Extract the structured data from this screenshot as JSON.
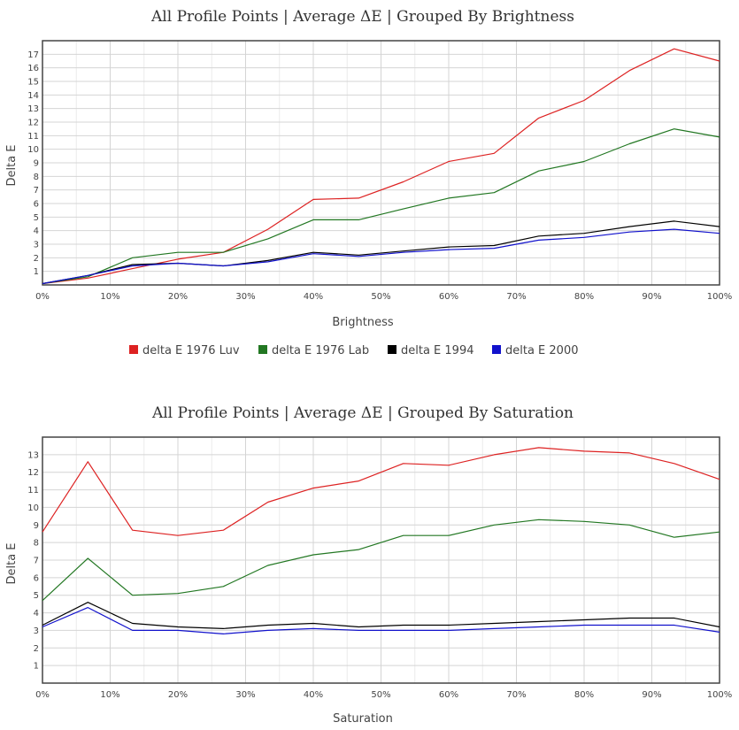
{
  "series_info": [
    {
      "name": "delta E 1976 Luv",
      "color": "#dd2222"
    },
    {
      "name": "delta E 1976 Lab",
      "color": "#227722"
    },
    {
      "name": "delta E 1994",
      "color": "#000000"
    },
    {
      "name": "delta E 2000",
      "color": "#1111cc"
    }
  ],
  "chart_data": [
    {
      "type": "line",
      "title": "All Profile Points | Average ΔE | Grouped By Brightness",
      "xlabel": "Brightness",
      "ylabel": "Delta E",
      "xlim": [
        0,
        100
      ],
      "ylim": [
        0,
        18
      ],
      "xticks": [
        "0%",
        "10%",
        "20%",
        "30%",
        "40%",
        "50%",
        "60%",
        "70%",
        "80%",
        "90%",
        "100%"
      ],
      "yticks": [
        1,
        2,
        3,
        4,
        5,
        6,
        7,
        8,
        9,
        10,
        11,
        12,
        13,
        14,
        15,
        16,
        17
      ],
      "grid": true,
      "legend": "bottom",
      "x": [
        0,
        6.7,
        13.3,
        20,
        26.7,
        33.3,
        40,
        46.7,
        53.3,
        60,
        66.7,
        73.3,
        80,
        86.7,
        93.3,
        100
      ],
      "series": [
        {
          "name": "delta E 1976 Luv",
          "values": [
            0.1,
            0.5,
            1.2,
            1.9,
            2.4,
            4.1,
            6.3,
            6.4,
            7.6,
            9.1,
            9.7,
            12.3,
            13.6,
            15.8,
            17.4,
            16.5
          ]
        },
        {
          "name": "delta E 1976 Lab",
          "values": [
            0.1,
            0.6,
            2.0,
            2.4,
            2.4,
            3.4,
            4.8,
            4.8,
            5.6,
            6.4,
            6.8,
            8.4,
            9.1,
            10.4,
            11.5,
            10.9
          ]
        },
        {
          "name": "delta E 1994",
          "values": [
            0.1,
            0.7,
            1.5,
            1.6,
            1.4,
            1.8,
            2.4,
            2.2,
            2.5,
            2.8,
            2.9,
            3.6,
            3.8,
            4.3,
            4.7,
            4.3
          ]
        },
        {
          "name": "delta E 2000",
          "values": [
            0.1,
            0.7,
            1.4,
            1.6,
            1.4,
            1.7,
            2.3,
            2.1,
            2.4,
            2.6,
            2.7,
            3.3,
            3.5,
            3.9,
            4.1,
            3.8
          ]
        }
      ]
    },
    {
      "type": "line",
      "title": "All Profile Points | Average ΔE | Grouped By Saturation",
      "xlabel": "Saturation",
      "ylabel": "Delta E",
      "xlim": [
        0,
        100
      ],
      "ylim": [
        0,
        14
      ],
      "xticks": [
        "0%",
        "10%",
        "20%",
        "30%",
        "40%",
        "50%",
        "60%",
        "70%",
        "80%",
        "90%",
        "100%"
      ],
      "yticks": [
        1,
        2,
        3,
        4,
        5,
        6,
        7,
        8,
        9,
        10,
        11,
        12,
        13
      ],
      "grid": true,
      "legend": "none",
      "x": [
        0,
        6.7,
        13.3,
        20,
        26.7,
        33.3,
        40,
        46.7,
        53.3,
        60,
        66.7,
        73.3,
        80,
        86.7,
        93.3,
        100
      ],
      "series": [
        {
          "name": "delta E 1976 Luv",
          "values": [
            8.6,
            12.6,
            8.7,
            8.4,
            8.7,
            10.3,
            11.1,
            11.5,
            12.5,
            12.4,
            13.0,
            13.4,
            13.2,
            13.1,
            12.5,
            11.6
          ]
        },
        {
          "name": "delta E 1976 Lab",
          "values": [
            4.7,
            7.1,
            5.0,
            5.1,
            5.5,
            6.7,
            7.3,
            7.6,
            8.4,
            8.4,
            9.0,
            9.3,
            9.2,
            9.0,
            8.3,
            8.6
          ]
        },
        {
          "name": "delta E 1994",
          "values": [
            3.3,
            4.6,
            3.4,
            3.2,
            3.1,
            3.3,
            3.4,
            3.2,
            3.3,
            3.3,
            3.4,
            3.5,
            3.6,
            3.7,
            3.7,
            3.2
          ]
        },
        {
          "name": "delta E 2000",
          "values": [
            3.2,
            4.3,
            3.0,
            3.0,
            2.8,
            3.0,
            3.1,
            3.0,
            3.0,
            3.0,
            3.1,
            3.2,
            3.3,
            3.3,
            3.3,
            2.9
          ]
        }
      ]
    }
  ]
}
